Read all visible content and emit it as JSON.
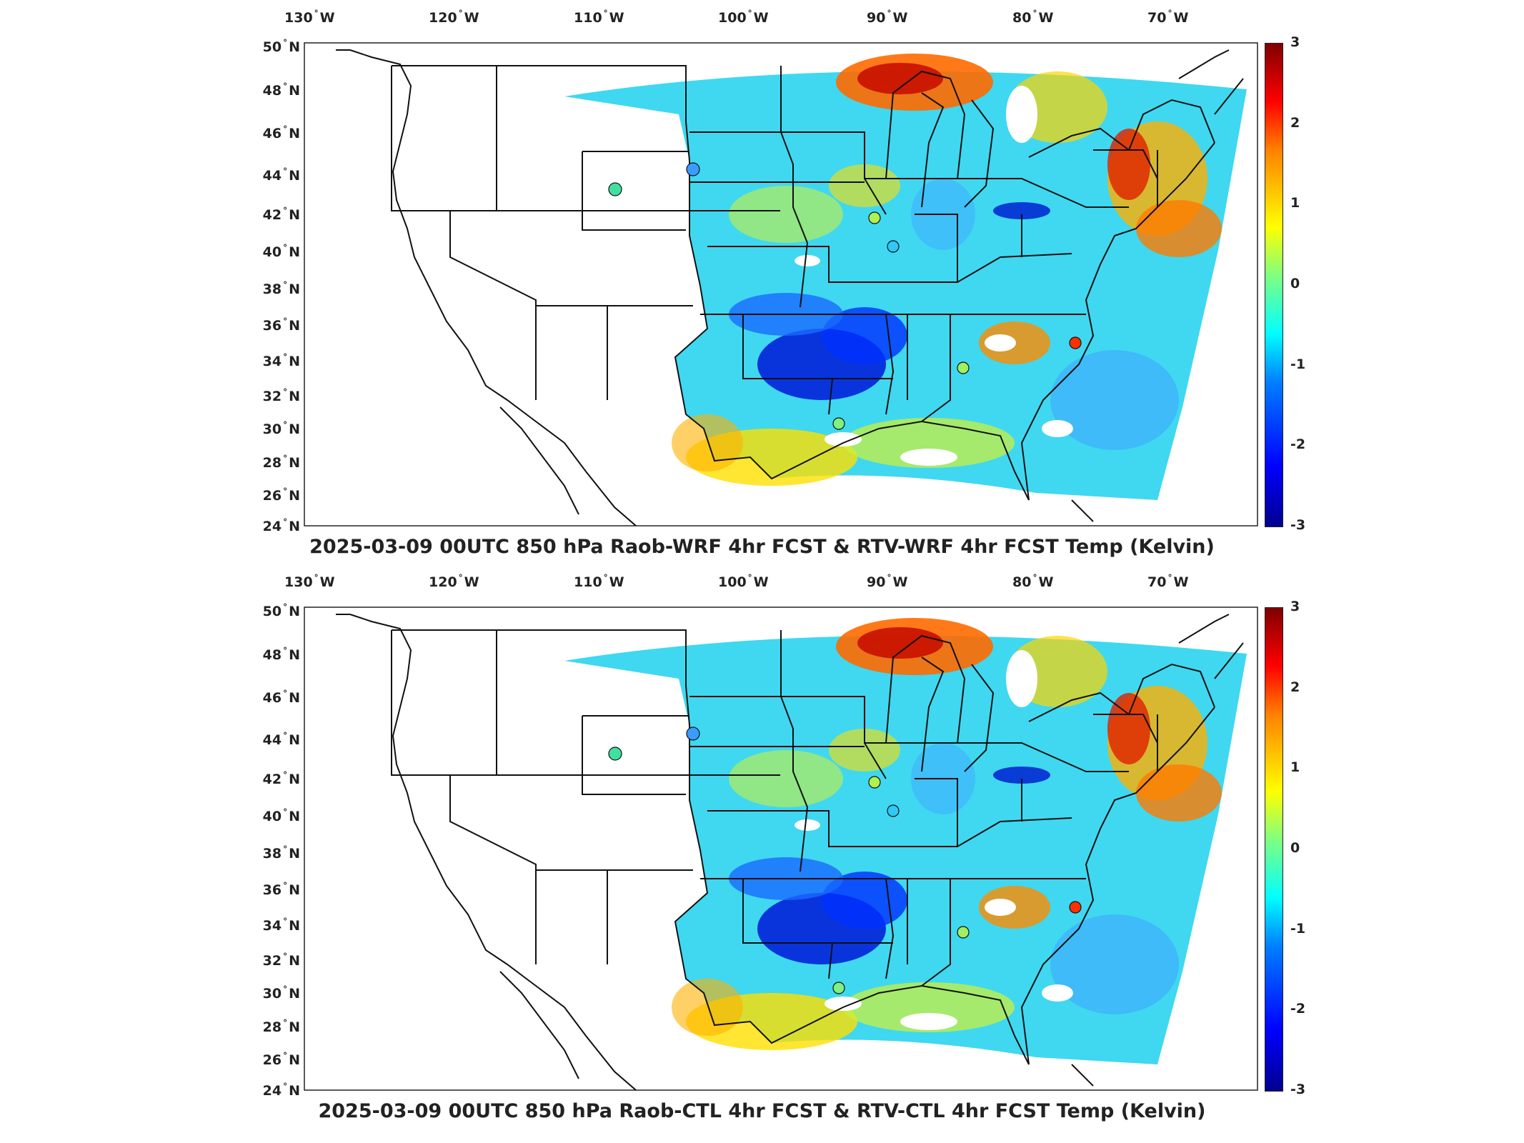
{
  "panels": [
    {
      "title": "2025-03-09 00UTC 850 hPa Raob-WRF 4hr FCST & RTV-WRF 4hr FCST Temp (Kelvin)",
      "lon_labels": [
        "130",
        "120",
        "110",
        "100",
        "90",
        "80",
        "70"
      ],
      "lat_labels": [
        "50",
        "48",
        "46",
        "44",
        "42",
        "40",
        "38",
        "36",
        "34",
        "32",
        "30",
        "28",
        "26",
        "24"
      ],
      "colorbar_ticks": [
        "3",
        "2",
        "1",
        "0",
        "-1",
        "-2",
        "-3"
      ]
    },
    {
      "title": "2025-03-09 00UTC 850 hPa Raob-CTL 4hr FCST & RTV-CTL 4hr FCST Temp (Kelvin)",
      "lon_labels": [
        "130",
        "120",
        "110",
        "100",
        "90",
        "80",
        "70"
      ],
      "lat_labels": [
        "50",
        "48",
        "46",
        "44",
        "42",
        "40",
        "38",
        "36",
        "34",
        "32",
        "30",
        "28",
        "26",
        "24"
      ],
      "colorbar_ticks": [
        "3",
        "2",
        "1",
        "0",
        "-1",
        "-2",
        "-3"
      ]
    }
  ],
  "lon_suffix": "W",
  "lat_suffix": "N",
  "degree_symbol": "°",
  "colormap": "jet",
  "colors": {
    "very_cold": "#00008f",
    "cold": "#0080ff",
    "neutral": "#00ffff",
    "warm": "#ffff00",
    "hot": "#ff0000",
    "very_hot": "#800000"
  }
}
